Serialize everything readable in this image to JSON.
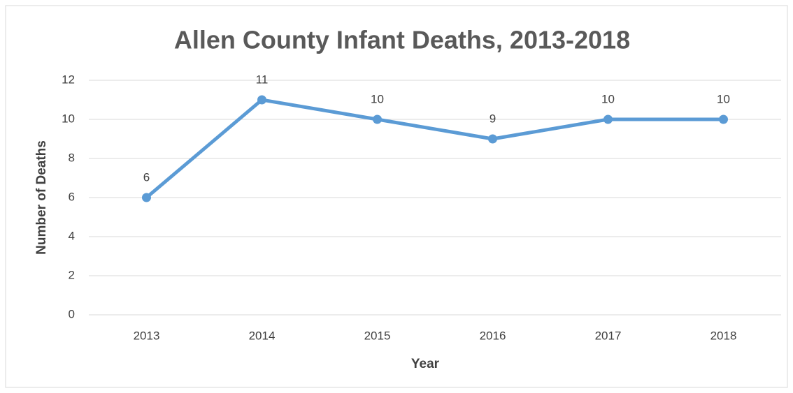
{
  "chart_data": {
    "type": "line",
    "title": "Allen County Infant Deaths, 2013-2018",
    "x_label": "Year",
    "y_label": "Number of Deaths",
    "categories": [
      "2013",
      "2014",
      "2015",
      "2016",
      "2017",
      "2018"
    ],
    "series": [
      {
        "name": "Number of Deaths",
        "color": "#5b9bd5",
        "values": [
          6,
          11,
          10,
          9,
          10,
          10
        ]
      }
    ],
    "ylim": [
      0,
      12
    ],
    "yticks": [
      0,
      2,
      4,
      6,
      8,
      10,
      12
    ],
    "grid": true
  }
}
